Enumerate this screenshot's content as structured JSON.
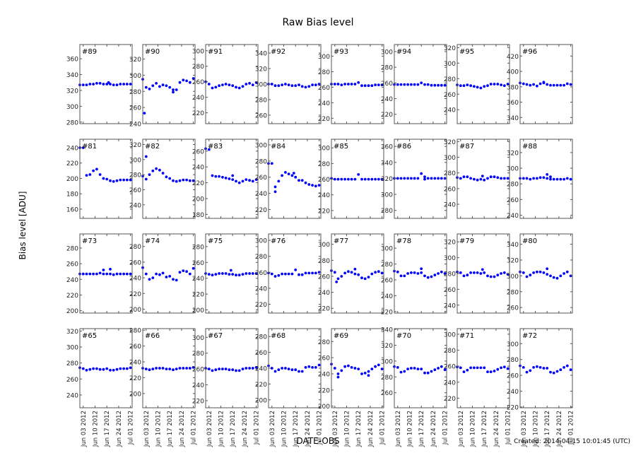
{
  "title": "Raw Bias level",
  "ylabel": "Bias level [ADU]",
  "xlabel": "DATE-OBS",
  "created": "Created: 2014-04-15 10:01:45 (UTC)",
  "chart_data": {
    "type": "scatter",
    "title": "Raw Bias level",
    "xlabel": "DATE-OBS",
    "ylabel": "Bias level [ADU]",
    "xlim": [
      "2012-06-01",
      "2012-07-02"
    ],
    "xticks": [
      "2012-06-03",
      "2012-06-10",
      "2012-06-17",
      "2012-06-24",
      "2012-07-01"
    ],
    "xtick_labels": [
      "Jun 03 2012",
      "Jun 10 2012",
      "Jun 17 2012",
      "Jun 24 2012",
      "Jul 01 2012"
    ],
    "x": [
      "2012-06-01",
      "2012-06-03",
      "2012-06-05",
      "2012-06-07",
      "2012-06-09",
      "2012-06-11",
      "2012-06-13",
      "2012-06-15",
      "2012-06-17",
      "2012-06-19",
      "2012-06-21",
      "2012-06-23",
      "2012-06-25",
      "2012-06-27",
      "2012-06-29",
      "2012-07-01"
    ],
    "marker_color": "#0000ff",
    "grid": false,
    "panels": [
      {
        "label": "#89",
        "ylim": [
          278,
          378
        ],
        "yticks": [
          280,
          300,
          320,
          340,
          360
        ],
        "values": [
          327,
          327,
          327,
          328,
          328,
          329,
          329,
          328,
          328,
          328,
          327,
          327,
          328,
          328,
          328,
          328
        ],
        "outliers": [
          [
            "2012-06-18",
            330
          ]
        ]
      },
      {
        "label": "#90",
        "ylim": [
          240,
          338
        ],
        "yticks": [
          240,
          260,
          280,
          300,
          320
        ],
        "values": [
          295,
          285,
          283,
          287,
          290,
          286,
          288,
          287,
          285,
          282,
          282,
          291,
          294,
          293,
          291,
          296
        ],
        "outliers": [
          [
            "2012-06-02",
            253
          ],
          [
            "2012-06-19",
            279
          ]
        ]
      },
      {
        "label": "#91",
        "ylim": [
          206,
          308
        ],
        "yticks": [
          220,
          240,
          260,
          280,
          300
        ],
        "values": [
          260,
          257,
          252,
          253,
          255,
          256,
          257,
          256,
          255,
          253,
          252,
          254,
          257,
          258,
          256,
          259
        ],
        "outliers": []
      },
      {
        "label": "#92",
        "ylim": [
          249,
          351
        ],
        "yticks": [
          260,
          280,
          300,
          320,
          340
        ],
        "values": [
          300,
          300,
          298,
          298,
          299,
          300,
          299,
          298,
          298,
          299,
          297,
          296,
          297,
          299,
          299,
          300
        ],
        "outliers": []
      },
      {
        "label": "#93",
        "ylim": [
          213,
          315
        ],
        "yticks": [
          220,
          240,
          260,
          280,
          300
        ],
        "values": [
          264,
          264,
          264,
          263,
          264,
          264,
          264,
          264,
          266,
          262,
          262,
          262,
          262,
          263,
          263,
          263
        ],
        "outliers": []
      },
      {
        "label": "#94",
        "ylim": [
          208,
          309
        ],
        "yticks": [
          220,
          240,
          260,
          280,
          300
        ],
        "values": [
          258,
          258,
          258,
          258,
          258,
          258,
          258,
          258,
          260,
          258,
          258,
          257,
          257,
          257,
          257,
          257
        ],
        "outliers": []
      },
      {
        "label": "#95",
        "ylim": [
          222,
          324
        ],
        "yticks": [
          240,
          260,
          280,
          300,
          320
        ],
        "values": [
          272,
          271,
          271,
          272,
          271,
          270,
          269,
          268,
          270,
          271,
          273,
          273,
          273,
          272,
          271,
          273
        ],
        "outliers": []
      },
      {
        "label": "#96",
        "ylim": [
          332,
          435
        ],
        "yticks": [
          340,
          360,
          380,
          400,
          420
        ],
        "values": [
          385,
          384,
          383,
          382,
          383,
          381,
          384,
          385,
          383,
          382,
          382,
          382,
          382,
          382,
          384,
          383
        ],
        "outliers": [
          [
            "2012-06-15",
            386
          ]
        ]
      },
      {
        "label": "#81",
        "ylim": [
          148,
          251
        ],
        "yticks": [
          160,
          180,
          200,
          220,
          240
        ],
        "values": [
          240,
          240,
          204,
          205,
          210,
          212,
          205,
          200,
          199,
          197,
          196,
          197,
          198,
          198,
          198,
          198
        ],
        "outliers": []
      },
      {
        "label": "#82",
        "ylim": [
          222,
          327
        ],
        "yticks": [
          240,
          260,
          280,
          300,
          320
        ],
        "values": [
          278,
          274,
          280,
          285,
          288,
          286,
          282,
          277,
          275,
          272,
          271,
          272,
          273,
          273,
          272,
          272
        ],
        "outliers": [
          [
            "2012-06-03",
            304
          ]
        ]
      },
      {
        "label": "#83",
        "ylim": [
          175,
          275
        ],
        "yticks": [
          180,
          200,
          220,
          240,
          260
        ],
        "values": [
          263,
          262,
          229,
          228,
          228,
          227,
          226,
          225,
          224,
          222,
          220,
          222,
          224,
          223,
          222,
          224
        ],
        "outliers": [
          [
            "2012-06-17",
            229
          ]
        ]
      },
      {
        "label": "#84",
        "ylim": [
          209,
          307
        ],
        "yticks": [
          220,
          240,
          260,
          280,
          300
        ],
        "values": [
          277,
          277,
          248,
          255,
          262,
          266,
          264,
          262,
          260,
          256,
          256,
          253,
          251,
          250,
          249,
          250
        ],
        "outliers": [
          [
            "2012-06-05",
            242
          ],
          [
            "2012-06-16",
            265
          ]
        ]
      },
      {
        "label": "#85",
        "ylim": [
          210,
          311
        ],
        "yticks": [
          220,
          240,
          260,
          280,
          300
        ],
        "values": [
          261,
          260,
          260,
          260,
          260,
          260,
          260,
          260,
          null,
          260,
          260,
          260,
          260,
          260,
          260,
          260
        ],
        "outliers": [
          [
            "2012-06-17",
            266
          ]
        ]
      },
      {
        "label": "#86",
        "ylim": [
          270,
          369
        ],
        "yticks": [
          280,
          300,
          320,
          340,
          360
        ],
        "values": [
          320,
          320,
          320,
          320,
          320,
          320,
          320,
          320,
          null,
          319,
          320,
          320,
          320,
          320,
          320,
          320
        ],
        "outliers": [
          [
            "2012-06-17",
            326
          ],
          [
            "2012-06-19",
            322
          ]
        ]
      },
      {
        "label": "#87",
        "ylim": [
          222,
          323
        ],
        "yticks": [
          240,
          260,
          280,
          300,
          320
        ],
        "values": [
          274,
          273,
          275,
          275,
          273,
          272,
          271,
          272,
          271,
          273,
          275,
          275,
          274,
          273,
          273,
          273
        ],
        "outliers": [
          [
            "2012-06-16",
            276
          ]
        ]
      },
      {
        "label": "#88",
        "ylim": [
          236,
          337
        ],
        "yticks": [
          240,
          260,
          280,
          300,
          320
        ],
        "values": [
          287,
          287,
          287,
          286,
          287,
          287,
          288,
          288,
          287,
          286,
          286,
          286,
          286,
          286,
          287,
          286
        ],
        "outliers": [
          [
            "2012-06-17",
            292
          ],
          [
            "2012-06-19",
            289
          ]
        ]
      },
      {
        "label": "#73",
        "ylim": [
          197,
          298
        ],
        "yticks": [
          200,
          220,
          240,
          260,
          280
        ],
        "values": [
          247,
          247,
          247,
          247,
          247,
          247,
          248,
          247,
          247,
          247,
          246,
          247,
          247,
          247,
          247,
          247
        ],
        "outliers": [
          [
            "2012-06-15",
            252
          ],
          [
            "2012-06-19",
            253
          ]
        ]
      },
      {
        "label": "#74",
        "ylim": [
          195,
          296
        ],
        "yticks": [
          200,
          220,
          240,
          260,
          280
        ],
        "values": [
          253,
          245,
          238,
          240,
          245,
          244,
          246,
          241,
          242,
          238,
          237,
          247,
          249,
          248,
          245,
          252
        ],
        "outliers": []
      },
      {
        "label": "#75",
        "ylim": [
          196,
          296
        ],
        "yticks": [
          200,
          220,
          240,
          260,
          280
        ],
        "values": [
          246,
          245,
          244,
          245,
          246,
          246,
          246,
          245,
          245,
          244,
          244,
          245,
          246,
          246,
          246,
          246
        ],
        "outliers": [
          [
            "2012-06-16",
            250
          ]
        ]
      },
      {
        "label": "#76",
        "ylim": [
          209,
          308
        ],
        "yticks": [
          220,
          240,
          260,
          280,
          300
        ],
        "values": [
          259,
          258,
          255,
          256,
          258,
          258,
          258,
          258,
          null,
          257,
          257,
          259,
          259,
          259,
          259,
          260
        ],
        "outliers": [
          [
            "2012-06-17",
            263
          ]
        ]
      },
      {
        "label": "#77",
        "ylim": [
          214,
          313
        ],
        "yticks": [
          220,
          240,
          260,
          280,
          300
        ],
        "values": [
          267,
          265,
          257,
          260,
          264,
          266,
          265,
          263,
          262,
          258,
          257,
          259,
          263,
          265,
          266,
          264
        ],
        "outliers": [
          [
            "2012-06-04",
            253
          ],
          [
            "2012-06-15",
            269
          ]
        ]
      },
      {
        "label": "#78",
        "ylim": [
          218,
          318
        ],
        "yticks": [
          220,
          240,
          260,
          280,
          300
        ],
        "values": [
          271,
          270,
          265,
          265,
          268,
          269,
          269,
          268,
          269,
          265,
          263,
          264,
          266,
          268,
          270,
          268
        ],
        "outliers": [
          [
            "2012-06-17",
            274
          ]
        ]
      },
      {
        "label": "#79",
        "ylim": [
          230,
          330
        ],
        "yticks": [
          240,
          260,
          280,
          300,
          320
        ],
        "values": [
          282,
          281,
          277,
          278,
          281,
          281,
          281,
          280,
          281,
          277,
          276,
          276,
          278,
          280,
          281,
          279
        ],
        "outliers": [
          [
            "2012-06-16",
            285
          ]
        ]
      },
      {
        "label": "#80",
        "ylim": [
          253,
          353
        ],
        "yticks": [
          260,
          280,
          300,
          320,
          340
        ],
        "values": [
          305,
          304,
          299,
          301,
          304,
          305,
          305,
          304,
          302,
          300,
          298,
          297,
          300,
          303,
          305,
          300
        ],
        "outliers": [
          [
            "2012-06-17",
            309
          ]
        ]
      },
      {
        "label": "#65",
        "ylim": [
          224,
          323
        ],
        "yticks": [
          240,
          260,
          280,
          300,
          320
        ],
        "values": [
          274,
          273,
          271,
          272,
          273,
          273,
          272,
          272,
          273,
          271,
          271,
          272,
          273,
          273,
          273,
          274
        ],
        "outliers": []
      },
      {
        "label": "#66",
        "ylim": [
          182,
          282
        ],
        "yticks": [
          200,
          220,
          240,
          260,
          280
        ],
        "values": [
          232,
          231,
          230,
          231,
          232,
          232,
          232,
          231,
          231,
          230,
          231,
          232,
          232,
          232,
          232,
          233
        ],
        "outliers": []
      },
      {
        "label": "#67",
        "ylim": [
          211,
          311
        ],
        "yticks": [
          220,
          240,
          260,
          280,
          300
        ],
        "values": [
          261,
          260,
          258,
          259,
          260,
          260,
          260,
          259,
          259,
          258,
          258,
          260,
          261,
          261,
          261,
          262
        ],
        "outliers": []
      },
      {
        "label": "#68",
        "ylim": [
          190,
          290
        ],
        "yticks": [
          200,
          220,
          240,
          260,
          280
        ],
        "values": [
          243,
          240,
          236,
          238,
          240,
          240,
          239,
          238,
          238,
          236,
          236,
          241,
          242,
          241,
          241,
          244
        ],
        "outliers": []
      },
      {
        "label": "#69",
        "ylim": [
          198,
          296
        ],
        "yticks": [
          200,
          220,
          240,
          260,
          280
        ],
        "values": [
          252,
          247,
          240,
          244,
          249,
          250,
          248,
          247,
          246,
          240,
          241,
          243,
          246,
          249,
          251,
          246
        ],
        "outliers": [
          [
            "2012-06-05",
            236
          ],
          [
            "2012-06-23",
            238
          ]
        ]
      },
      {
        "label": "#70",
        "ylim": [
          241,
          341
        ],
        "yticks": [
          260,
          280,
          300,
          320,
          340
        ],
        "values": [
          293,
          292,
          286,
          287,
          290,
          291,
          291,
          290,
          290,
          285,
          285,
          287,
          289,
          291,
          293,
          289
        ],
        "outliers": []
      },
      {
        "label": "#71",
        "ylim": [
          208,
          307
        ],
        "yticks": [
          220,
          240,
          260,
          280,
          300
        ],
        "values": [
          259,
          258,
          253,
          255,
          258,
          258,
          258,
          258,
          258,
          253,
          253,
          254,
          256,
          258,
          259,
          257
        ],
        "outliers": []
      },
      {
        "label": "#72",
        "ylim": [
          219,
          319
        ],
        "yticks": [
          220,
          240,
          260,
          280,
          300
        ],
        "values": [
          272,
          270,
          264,
          266,
          270,
          271,
          270,
          269,
          269,
          264,
          263,
          265,
          267,
          270,
          272,
          267
        ],
        "outliers": []
      }
    ]
  }
}
